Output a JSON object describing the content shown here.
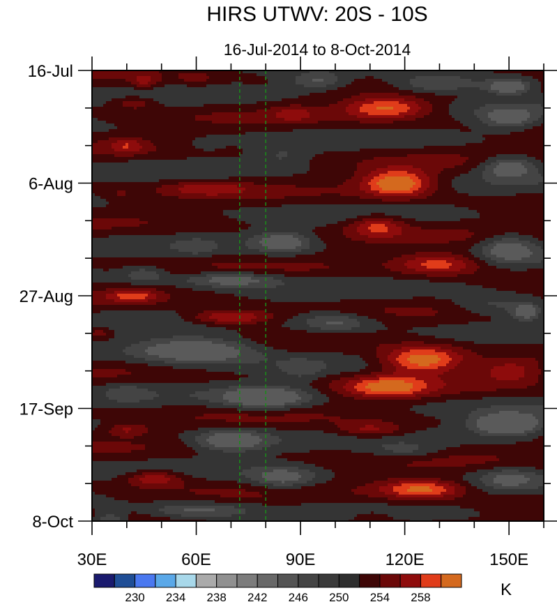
{
  "chart_data": {
    "type": "heatmap",
    "title": "HIRS UTWV: 20S - 10S",
    "subtitle": "16-Jul-2014 to 8-Oct-2014",
    "x_ticks": [
      {
        "value": 30,
        "label": "30E"
      },
      {
        "value": 60,
        "label": "60E"
      },
      {
        "value": 90,
        "label": "90E"
      },
      {
        "value": 120,
        "label": "120E"
      },
      {
        "value": 150,
        "label": "150E"
      }
    ],
    "xlim": [
      30,
      160
    ],
    "y_ticks": [
      {
        "day": 0,
        "label": "16-Jul"
      },
      {
        "day": 21,
        "label": "6-Aug"
      },
      {
        "day": 42,
        "label": "27-Aug"
      },
      {
        "day": 63,
        "label": "17-Sep"
      },
      {
        "day": 84,
        "label": "8-Oct"
      }
    ],
    "ylim_days": [
      0,
      84
    ],
    "reference_lines_lon": [
      72.5,
      80
    ],
    "reference_line_color": "#1a8c1a",
    "colorbar": {
      "units": "K",
      "colors": [
        "#1a1a6e",
        "#1f4e96",
        "#4a78f0",
        "#5aa8e8",
        "#a8d8ea",
        "#aaaaaa",
        "#909090",
        "#7c7c7c",
        "#686868",
        "#545454",
        "#444444",
        "#3a3a3a",
        "#2e2e2e",
        "#3e0606",
        "#6b0808",
        "#8e0c0c",
        "#e03c1a",
        "#d4691e"
      ],
      "labels": [
        "230",
        "234",
        "238",
        "242",
        "246",
        "250",
        "254",
        "258"
      ]
    },
    "field_band_colors": [
      "#5a5a5a",
      "#444444",
      "#343434",
      "#3e0606",
      "#6b0808",
      "#8e0c0c",
      "#e03c1a",
      "#d4691e"
    ],
    "features": [
      {
        "lon": 45,
        "day": 2,
        "amp": 1.0,
        "slon": 4,
        "sday": 1.3
      },
      {
        "lon": 60,
        "day": 1.5,
        "amp": 0.6,
        "slon": 5,
        "sday": 1.2
      },
      {
        "lon": 95,
        "day": 2,
        "amp": -1.2,
        "slon": 8,
        "sday": 1.5
      },
      {
        "lon": 130,
        "day": 2.5,
        "amp": -1.6,
        "slon": 14,
        "sday": 1.8
      },
      {
        "lon": 150,
        "day": 3,
        "amp": -2.0,
        "slon": 7,
        "sday": 1.5
      },
      {
        "lon": 42,
        "day": 6,
        "amp": 1.0,
        "slon": 6,
        "sday": 1.2
      },
      {
        "lon": 115,
        "day": 7,
        "amp": 2.0,
        "slon": 12,
        "sday": 2.0
      },
      {
        "lon": 88,
        "day": 8,
        "amp": 0.8,
        "slon": 6,
        "sday": 1.5
      },
      {
        "lon": 150,
        "day": 9,
        "amp": -1.5,
        "slon": 8,
        "sday": 2.0
      },
      {
        "lon": 40,
        "day": 14,
        "amp": 1.0,
        "slon": 5,
        "sday": 1.5
      },
      {
        "lon": 85,
        "day": 16,
        "amp": -0.6,
        "slon": 8,
        "sday": 2.0
      },
      {
        "lon": 62,
        "day": 14,
        "amp": -0.3,
        "slon": 6,
        "sday": 1.5
      },
      {
        "lon": 150,
        "day": 18,
        "amp": -1.8,
        "slon": 8,
        "sday": 2.0
      },
      {
        "lon": 118,
        "day": 21,
        "amp": 2.6,
        "slon": 10,
        "sday": 2.5
      },
      {
        "lon": 63,
        "day": 22,
        "amp": 1.0,
        "slon": 12,
        "sday": 1.3
      },
      {
        "lon": 38,
        "day": 23,
        "amp": 0.4,
        "slon": 4,
        "sday": 1.3
      },
      {
        "lon": 112,
        "day": 29,
        "amp": 1.5,
        "slon": 8,
        "sday": 2.0
      },
      {
        "lon": 85,
        "day": 32,
        "amp": -1.6,
        "slon": 8,
        "sday": 2.0
      },
      {
        "lon": 60,
        "day": 33,
        "amp": -0.6,
        "slon": 5,
        "sday": 1.5
      },
      {
        "lon": 130,
        "day": 36,
        "amp": 1.8,
        "slon": 12,
        "sday": 2.0
      },
      {
        "lon": 45,
        "day": 38,
        "amp": -1.0,
        "slon": 6,
        "sday": 1.5
      },
      {
        "lon": 150,
        "day": 33,
        "amp": -1.5,
        "slon": 8,
        "sday": 2.5
      },
      {
        "lon": 70,
        "day": 39,
        "amp": -1.5,
        "slon": 14,
        "sday": 1.4
      },
      {
        "lon": 42,
        "day": 42,
        "amp": 1.4,
        "slon": 7,
        "sday": 1.2
      },
      {
        "lon": 70,
        "day": 46,
        "amp": 1.8,
        "slon": 12,
        "sday": 1.4
      },
      {
        "lon": 100,
        "day": 47,
        "amp": -1.2,
        "slon": 10,
        "sday": 1.8
      },
      {
        "lon": 145,
        "day": 44,
        "amp": -1.0,
        "slon": 12,
        "sday": 2.0
      },
      {
        "lon": 155,
        "day": 45,
        "amp": -1.8,
        "slon": 4,
        "sday": 1.5
      },
      {
        "lon": 32,
        "day": 49,
        "amp": 0.8,
        "slon": 3,
        "sday": 1.0
      },
      {
        "lon": 60,
        "day": 52,
        "amp": -2.2,
        "slon": 18,
        "sday": 2.5
      },
      {
        "lon": 125,
        "day": 54,
        "amp": 2.6,
        "slon": 12,
        "sday": 2.5
      },
      {
        "lon": 115,
        "day": 59,
        "amp": 2.0,
        "slon": 12,
        "sday": 2.0
      },
      {
        "lon": 150,
        "day": 56,
        "amp": 1.2,
        "slon": 8,
        "sday": 2.0
      },
      {
        "lon": 90,
        "day": 56,
        "amp": -0.6,
        "slon": 6,
        "sday": 2.0
      },
      {
        "lon": 80,
        "day": 61,
        "amp": -2.0,
        "slon": 12,
        "sday": 2.0
      },
      {
        "lon": 40,
        "day": 60,
        "amp": -0.6,
        "slon": 6,
        "sday": 2.0
      },
      {
        "lon": 150,
        "day": 66,
        "amp": -2.6,
        "slon": 10,
        "sday": 2.0
      },
      {
        "lon": 110,
        "day": 67,
        "amp": 1.2,
        "slon": 10,
        "sday": 1.5
      },
      {
        "lon": 40,
        "day": 67,
        "amp": 1.0,
        "slon": 6,
        "sday": 1.2
      },
      {
        "lon": 70,
        "day": 69,
        "amp": -1.8,
        "slon": 10,
        "sday": 2.0
      },
      {
        "lon": 120,
        "day": 71,
        "amp": -0.8,
        "slon": 10,
        "sday": 1.5
      },
      {
        "lon": 48,
        "day": 76,
        "amp": 1.5,
        "slon": 8,
        "sday": 1.5
      },
      {
        "lon": 85,
        "day": 76,
        "amp": -1.5,
        "slon": 10,
        "sday": 2.0
      },
      {
        "lon": 125,
        "day": 78,
        "amp": 2.2,
        "slon": 12,
        "sday": 1.8
      },
      {
        "lon": 150,
        "day": 76,
        "amp": -1.0,
        "slon": 8,
        "sday": 2.0
      },
      {
        "lon": 60,
        "day": 82,
        "amp": -1.2,
        "slon": 14,
        "sday": 1.5
      },
      {
        "lon": 110,
        "day": 83,
        "amp": 0.5,
        "slon": 10,
        "sday": 1.5
      },
      {
        "lon": 35,
        "day": 84,
        "amp": -1.5,
        "slon": 5,
        "sday": 1.5
      }
    ]
  }
}
